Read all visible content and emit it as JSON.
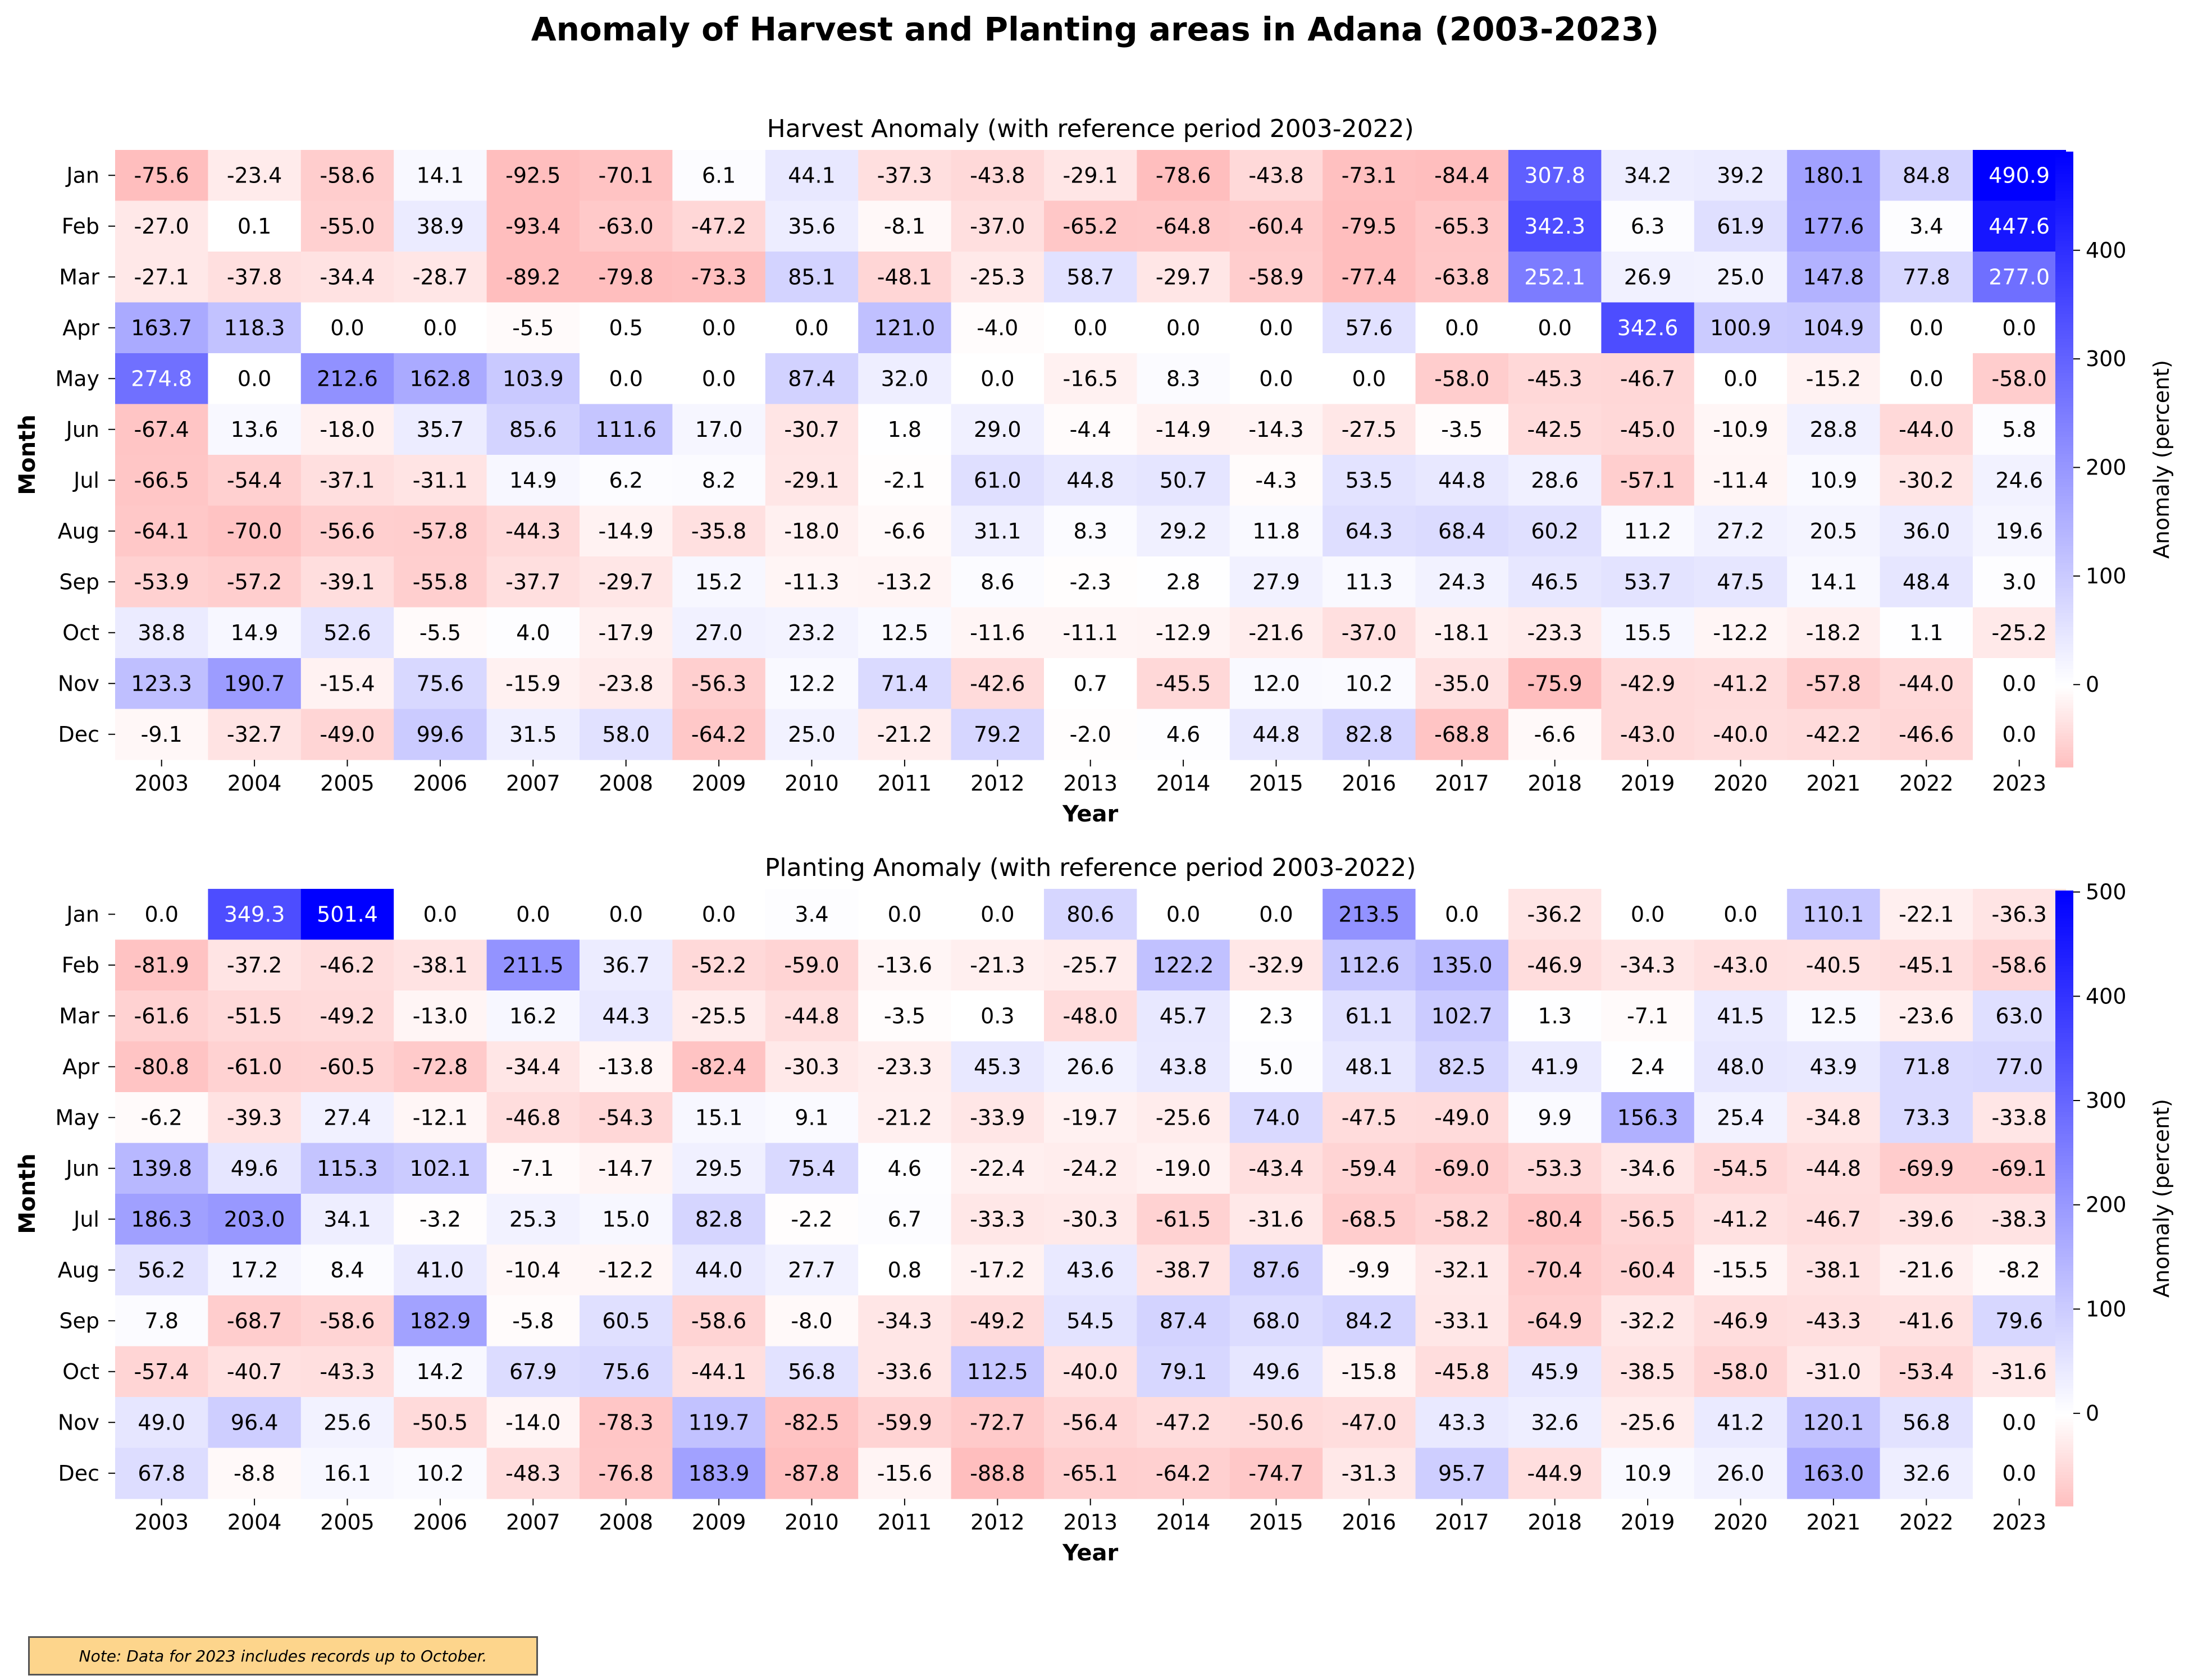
{
  "title": "Anomaly of Harvest and Planting areas in Adana (2003-2023)",
  "note": "Note: Data for 2023 includes records up to October.",
  "chart_data": [
    {
      "type": "heatmap",
      "title": "Harvest Anomaly (with reference period 2003-2022)",
      "xlabel": "Year",
      "ylabel": "Month",
      "colorbar_label": "Anomaly (percent)",
      "colorbar_ticks": [
        0,
        100,
        200,
        300,
        400
      ],
      "vmin": -75.9,
      "vmax": 490.9,
      "x": [
        "2003",
        "2004",
        "2005",
        "2006",
        "2007",
        "2008",
        "2009",
        "2010",
        "2011",
        "2012",
        "2013",
        "2014",
        "2015",
        "2016",
        "2017",
        "2018",
        "2019",
        "2020",
        "2021",
        "2022",
        "2023"
      ],
      "y": [
        "Jan",
        "Feb",
        "Mar",
        "Apr",
        "May",
        "Jun",
        "Jul",
        "Aug",
        "Sep",
        "Oct",
        "Nov",
        "Dec"
      ],
      "values": [
        [
          -75.6,
          -23.4,
          -58.6,
          14.1,
          -92.5,
          -70.1,
          6.1,
          44.1,
          -37.3,
          -43.8,
          -29.1,
          -78.6,
          -43.8,
          -73.1,
          -84.4,
          307.8,
          34.2,
          39.2,
          180.1,
          84.8,
          490.9
        ],
        [
          -27.0,
          0.1,
          -55.0,
          38.9,
          -93.4,
          -63.0,
          -47.2,
          35.6,
          -8.1,
          -37.0,
          -65.2,
          -64.8,
          -60.4,
          -79.5,
          -65.3,
          342.3,
          6.3,
          61.9,
          177.6,
          3.4,
          447.6
        ],
        [
          -27.1,
          -37.8,
          -34.4,
          -28.7,
          -89.2,
          -79.8,
          -73.3,
          85.1,
          -48.1,
          -25.3,
          58.7,
          -29.7,
          -58.9,
          -77.4,
          -63.8,
          252.1,
          26.9,
          25.0,
          147.8,
          77.8,
          277.0
        ],
        [
          163.7,
          118.3,
          0.0,
          0.0,
          -5.5,
          0.5,
          0.0,
          0.0,
          121.0,
          -4.0,
          0.0,
          0.0,
          0.0,
          57.6,
          0.0,
          0.0,
          342.6,
          100.9,
          104.9,
          0.0,
          0.0
        ],
        [
          274.8,
          0.0,
          212.6,
          162.8,
          103.9,
          0.0,
          0.0,
          87.4,
          32.0,
          0.0,
          -16.5,
          8.3,
          0.0,
          0.0,
          -58.0,
          -45.3,
          -46.7,
          0.0,
          -15.2,
          0.0,
          -58.0
        ],
        [
          -67.4,
          13.6,
          -18.0,
          35.7,
          85.6,
          111.6,
          17.0,
          -30.7,
          1.8,
          29.0,
          -4.4,
          -14.9,
          -14.3,
          -27.5,
          -3.5,
          -42.5,
          -45.0,
          -10.9,
          28.8,
          -44.0,
          5.8
        ],
        [
          -66.5,
          -54.4,
          -37.1,
          -31.1,
          14.9,
          6.2,
          8.2,
          -29.1,
          -2.1,
          61.0,
          44.8,
          50.7,
          -4.3,
          53.5,
          44.8,
          28.6,
          -57.1,
          -11.4,
          10.9,
          -30.2,
          24.6
        ],
        [
          -64.1,
          -70.0,
          -56.6,
          -57.8,
          -44.3,
          -14.9,
          -35.8,
          -18.0,
          -6.6,
          31.1,
          8.3,
          29.2,
          11.8,
          64.3,
          68.4,
          60.2,
          11.2,
          27.2,
          20.5,
          36.0,
          19.6
        ],
        [
          -53.9,
          -57.2,
          -39.1,
          -55.8,
          -37.7,
          -29.7,
          15.2,
          -11.3,
          -13.2,
          8.6,
          -2.3,
          2.8,
          27.9,
          11.3,
          24.3,
          46.5,
          53.7,
          47.5,
          14.1,
          48.4,
          3.0
        ],
        [
          38.8,
          14.9,
          52.6,
          -5.5,
          4.0,
          -17.9,
          27.0,
          23.2,
          12.5,
          -11.6,
          -11.1,
          -12.9,
          -21.6,
          -37.0,
          -18.1,
          -23.3,
          15.5,
          -12.2,
          -18.2,
          1.1,
          -25.2
        ],
        [
          123.3,
          190.7,
          -15.4,
          75.6,
          -15.9,
          -23.8,
          -56.3,
          12.2,
          71.4,
          -42.6,
          0.7,
          -45.5,
          12.0,
          10.2,
          -35.0,
          -75.9,
          -42.9,
          -41.2,
          -57.8,
          -44.0,
          0.0
        ],
        [
          -9.1,
          -32.7,
          -49.0,
          99.6,
          31.5,
          58.0,
          -64.2,
          25.0,
          -21.2,
          79.2,
          -2.0,
          4.6,
          44.8,
          82.8,
          -68.8,
          -6.6,
          -43.0,
          -40.0,
          -42.2,
          -46.6,
          0.0
        ]
      ]
    },
    {
      "type": "heatmap",
      "title": "Planting Anomaly (with reference period 2003-2022)",
      "xlabel": "Year",
      "ylabel": "Month",
      "colorbar_label": "Anomaly (percent)",
      "colorbar_ticks": [
        0,
        100,
        200,
        300,
        400,
        500
      ],
      "vmin": -88.8,
      "vmax": 501.4,
      "x": [
        "2003",
        "2004",
        "2005",
        "2006",
        "2007",
        "2008",
        "2009",
        "2010",
        "2011",
        "2012",
        "2013",
        "2014",
        "2015",
        "2016",
        "2017",
        "2018",
        "2019",
        "2020",
        "2021",
        "2022",
        "2023"
      ],
      "y": [
        "Jan",
        "Feb",
        "Mar",
        "Apr",
        "May",
        "Jun",
        "Jul",
        "Aug",
        "Sep",
        "Oct",
        "Nov",
        "Dec"
      ],
      "values": [
        [
          0.0,
          349.3,
          501.4,
          0.0,
          0.0,
          0.0,
          0.0,
          3.4,
          0.0,
          0.0,
          80.6,
          0.0,
          0.0,
          213.5,
          0.0,
          -36.2,
          0.0,
          0.0,
          110.1,
          -22.1,
          -36.3
        ],
        [
          -81.9,
          -37.2,
          -46.2,
          -38.1,
          211.5,
          36.7,
          -52.2,
          -59.0,
          -13.6,
          -21.3,
          -25.7,
          122.2,
          -32.9,
          112.6,
          135.0,
          -46.9,
          -34.3,
          -43.0,
          -40.5,
          -45.1,
          -58.6
        ],
        [
          -61.6,
          -51.5,
          -49.2,
          -13.0,
          16.2,
          44.3,
          -25.5,
          -44.8,
          -3.5,
          0.3,
          -48.0,
          45.7,
          2.3,
          61.1,
          102.7,
          1.3,
          -7.1,
          41.5,
          12.5,
          -23.6,
          63.0
        ],
        [
          -80.8,
          -61.0,
          -60.5,
          -72.8,
          -34.4,
          -13.8,
          -82.4,
          -30.3,
          -23.3,
          45.3,
          26.6,
          43.8,
          5.0,
          48.1,
          82.5,
          41.9,
          2.4,
          48.0,
          43.9,
          71.8,
          77.0
        ],
        [
          -6.2,
          -39.3,
          27.4,
          -12.1,
          -46.8,
          -54.3,
          15.1,
          9.1,
          -21.2,
          -33.9,
          -19.7,
          -25.6,
          74.0,
          -47.5,
          -49.0,
          9.9,
          156.3,
          25.4,
          -34.8,
          73.3,
          -33.8
        ],
        [
          139.8,
          49.6,
          115.3,
          102.1,
          -7.1,
          -14.7,
          29.5,
          75.4,
          4.6,
          -22.4,
          -24.2,
          -19.0,
          -43.4,
          -59.4,
          -69.0,
          -53.3,
          -34.6,
          -54.5,
          -44.8,
          -69.9,
          -69.1
        ],
        [
          186.3,
          203.0,
          34.1,
          -3.2,
          25.3,
          15.0,
          82.8,
          -2.2,
          6.7,
          -33.3,
          -30.3,
          -61.5,
          -31.6,
          -68.5,
          -58.2,
          -80.4,
          -56.5,
          -41.2,
          -46.7,
          -39.6,
          -38.3
        ],
        [
          56.2,
          17.2,
          8.4,
          41.0,
          -10.4,
          -12.2,
          44.0,
          27.7,
          0.8,
          -17.2,
          43.6,
          -38.7,
          87.6,
          -9.9,
          -32.1,
          -70.4,
          -60.4,
          -15.5,
          -38.1,
          -21.6,
          -8.2
        ],
        [
          7.8,
          -68.7,
          -58.6,
          182.9,
          -5.8,
          60.5,
          -58.6,
          -8.0,
          -34.3,
          -49.2,
          54.5,
          87.4,
          68.0,
          84.2,
          -33.1,
          -64.9,
          -32.2,
          -46.9,
          -43.3,
          -41.6,
          79.6
        ],
        [
          -57.4,
          -40.7,
          -43.3,
          14.2,
          67.9,
          75.6,
          -44.1,
          56.8,
          -33.6,
          112.5,
          -40.0,
          79.1,
          49.6,
          -15.8,
          -45.8,
          45.9,
          -38.5,
          -58.0,
          -31.0,
          -53.4,
          -31.6
        ],
        [
          49.0,
          96.4,
          25.6,
          -50.5,
          -14.0,
          -78.3,
          119.7,
          -82.5,
          -59.9,
          -72.7,
          -56.4,
          -47.2,
          -50.6,
          -47.0,
          43.3,
          32.6,
          -25.6,
          41.2,
          120.1,
          56.8,
          0.0
        ],
        [
          67.8,
          -8.8,
          16.1,
          10.2,
          -48.3,
          -76.8,
          183.9,
          -87.8,
          -15.6,
          -88.8,
          -65.1,
          -64.2,
          -74.7,
          -31.3,
          95.7,
          -44.9,
          10.9,
          26.0,
          163.0,
          32.6,
          0.0
        ]
      ]
    }
  ]
}
